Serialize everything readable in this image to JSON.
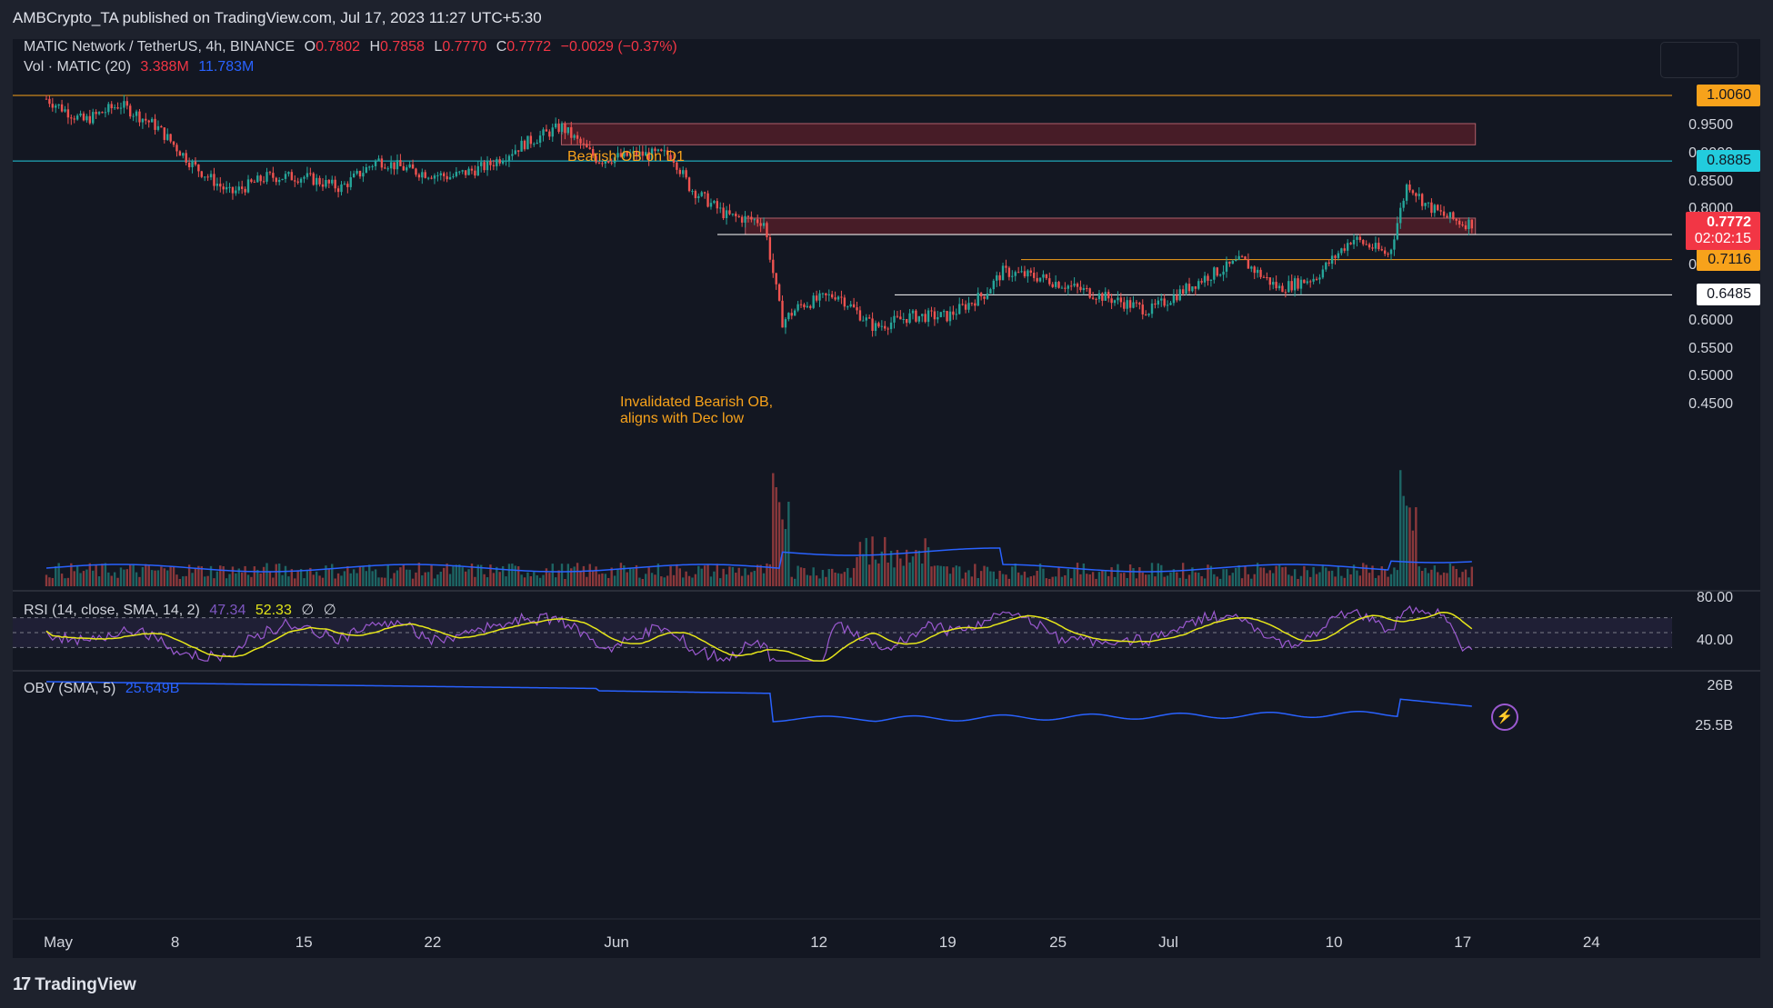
{
  "publisher": "AMBCrypto_TA published on TradingView.com, Jul 17, 2023 11:27 UTC+5:30",
  "header": {
    "symbol": "MATIC Network / TetherUS, 4h, BINANCE",
    "open_label": "O",
    "open": "0.7802",
    "high_label": "H",
    "high": "0.7858",
    "low_label": "L",
    "low": "0.7770",
    "close_label": "C",
    "close": "0.7772",
    "change": "−0.0029 (−0.37%)"
  },
  "volume_legend": {
    "label": "Vol · MATIC (20)",
    "value1": "3.388M",
    "value2": "11.783M"
  },
  "rsi_legend": {
    "label": "RSI (14, close, SMA, 14, 2)",
    "value1": "47.34",
    "value2": "52.33",
    "extra1": "∅",
    "extra2": "∅"
  },
  "obv_legend": {
    "label": "OBV (SMA, 5)",
    "value": "25.649B"
  },
  "price_labels": {
    "level_1006": "1.0060",
    "level_8885": "0.8885",
    "current_price": "0.7772",
    "countdown": "02:02:15",
    "level_7566": "0.7566",
    "level_7116": "0.7116",
    "level_6485": "0.6485"
  },
  "y_axis_ticks": [
    "0.9500",
    "0.9000",
    "0.8500",
    "0.8000",
    "0.7000",
    "0.6000",
    "0.5500",
    "0.5000",
    "0.4500"
  ],
  "rsi_axis_ticks": [
    "80.00",
    "40.00"
  ],
  "obv_axis_ticks": [
    "26B",
    "25.5B"
  ],
  "x_axis_ticks": [
    "May",
    "8",
    "15",
    "22",
    "Jun",
    "12",
    "19",
    "25",
    "Jul",
    "10",
    "17",
    "24"
  ],
  "annotations": {
    "bearish_ob_d1": "Bearish OB on D1",
    "invalidated_line1": "Invalidated Bearish OB,",
    "invalidated_line2": "aligns with Dec low"
  },
  "footer": {
    "brand": "TradingView",
    "logo_mark": "17"
  },
  "colors": {
    "up": "#26a69a",
    "down": "#ef5350",
    "orange": "#f7a21b",
    "cyan": "#22ccdd",
    "white": "#ffffff",
    "current": "#f23645",
    "rsi": "#9b59d0",
    "rsi_sma": "#e6e61a",
    "obv": "#2962ff",
    "ob_zone": "#5a1f2a"
  },
  "chart_data": {
    "type": "candlestick",
    "symbol": "MATIC/USDT",
    "timeframe": "4h",
    "y_range": [
      0.45,
      1.03
    ],
    "x_ticks": [
      "May",
      "8",
      "15",
      "22",
      "Jun",
      "12",
      "19",
      "25",
      "Jul",
      "10",
      "17",
      "24"
    ],
    "price_path": [
      {
        "date": "May 1",
        "price": 1.0
      },
      {
        "date": "May 3",
        "price": 0.96
      },
      {
        "date": "May 5",
        "price": 0.99
      },
      {
        "date": "May 7",
        "price": 0.95
      },
      {
        "date": "May 9",
        "price": 0.88
      },
      {
        "date": "May 11",
        "price": 0.83
      },
      {
        "date": "May 13",
        "price": 0.86
      },
      {
        "date": "May 15",
        "price": 0.86
      },
      {
        "date": "May 17",
        "price": 0.84
      },
      {
        "date": "May 19",
        "price": 0.89
      },
      {
        "date": "May 21",
        "price": 0.87
      },
      {
        "date": "May 23",
        "price": 0.86
      },
      {
        "date": "May 25",
        "price": 0.88
      },
      {
        "date": "May 27",
        "price": 0.92
      },
      {
        "date": "May 29",
        "price": 0.95
      },
      {
        "date": "May 31",
        "price": 0.89
      },
      {
        "date": "Jun 2",
        "price": 0.9
      },
      {
        "date": "Jun 4",
        "price": 0.9
      },
      {
        "date": "Jun 5",
        "price": 0.84
      },
      {
        "date": "Jun 7",
        "price": 0.79
      },
      {
        "date": "Jun 9",
        "price": 0.78
      },
      {
        "date": "Jun 10",
        "price": 0.6
      },
      {
        "date": "Jun 11",
        "price": 0.63
      },
      {
        "date": "Jun 13",
        "price": 0.65
      },
      {
        "date": "Jun 15",
        "price": 0.59
      },
      {
        "date": "Jun 17",
        "price": 0.61
      },
      {
        "date": "Jun 19",
        "price": 0.61
      },
      {
        "date": "Jun 21",
        "price": 0.65
      },
      {
        "date": "Jun 22",
        "price": 0.69
      },
      {
        "date": "Jun 24",
        "price": 0.68
      },
      {
        "date": "Jun 26",
        "price": 0.66
      },
      {
        "date": "Jun 28",
        "price": 0.64
      },
      {
        "date": "Jun 30",
        "price": 0.62
      },
      {
        "date": "Jul 1",
        "price": 0.64
      },
      {
        "date": "Jul 3",
        "price": 0.68
      },
      {
        "date": "Jul 5",
        "price": 0.71
      },
      {
        "date": "Jul 7",
        "price": 0.66
      },
      {
        "date": "Jul 9",
        "price": 0.68
      },
      {
        "date": "Jul 11",
        "price": 0.75
      },
      {
        "date": "Jul 13",
        "price": 0.72
      },
      {
        "date": "Jul 14",
        "price": 0.85
      },
      {
        "date": "Jul 15",
        "price": 0.81
      },
      {
        "date": "Jul 16",
        "price": 0.79
      },
      {
        "date": "Jul 17",
        "price": 0.7772
      }
    ],
    "horizontal_levels": [
      1.006,
      0.8885,
      0.7566,
      0.7116,
      0.6485
    ],
    "zones": [
      {
        "label": "Bearish OB on D1",
        "from": "May 29",
        "to": "Jul 17",
        "low": 0.9175,
        "high": 0.9555
      },
      {
        "label": "Invalidated Bearish OB",
        "from": "Jun 8",
        "to": "Jul 17",
        "low": 0.7566,
        "high": 0.786
      }
    ],
    "rsi": {
      "length": 14,
      "sma": 14,
      "value": 47.34,
      "sma_value": 52.33,
      "bands": [
        70,
        30
      ]
    },
    "obv": {
      "value": "25.649B"
    }
  }
}
